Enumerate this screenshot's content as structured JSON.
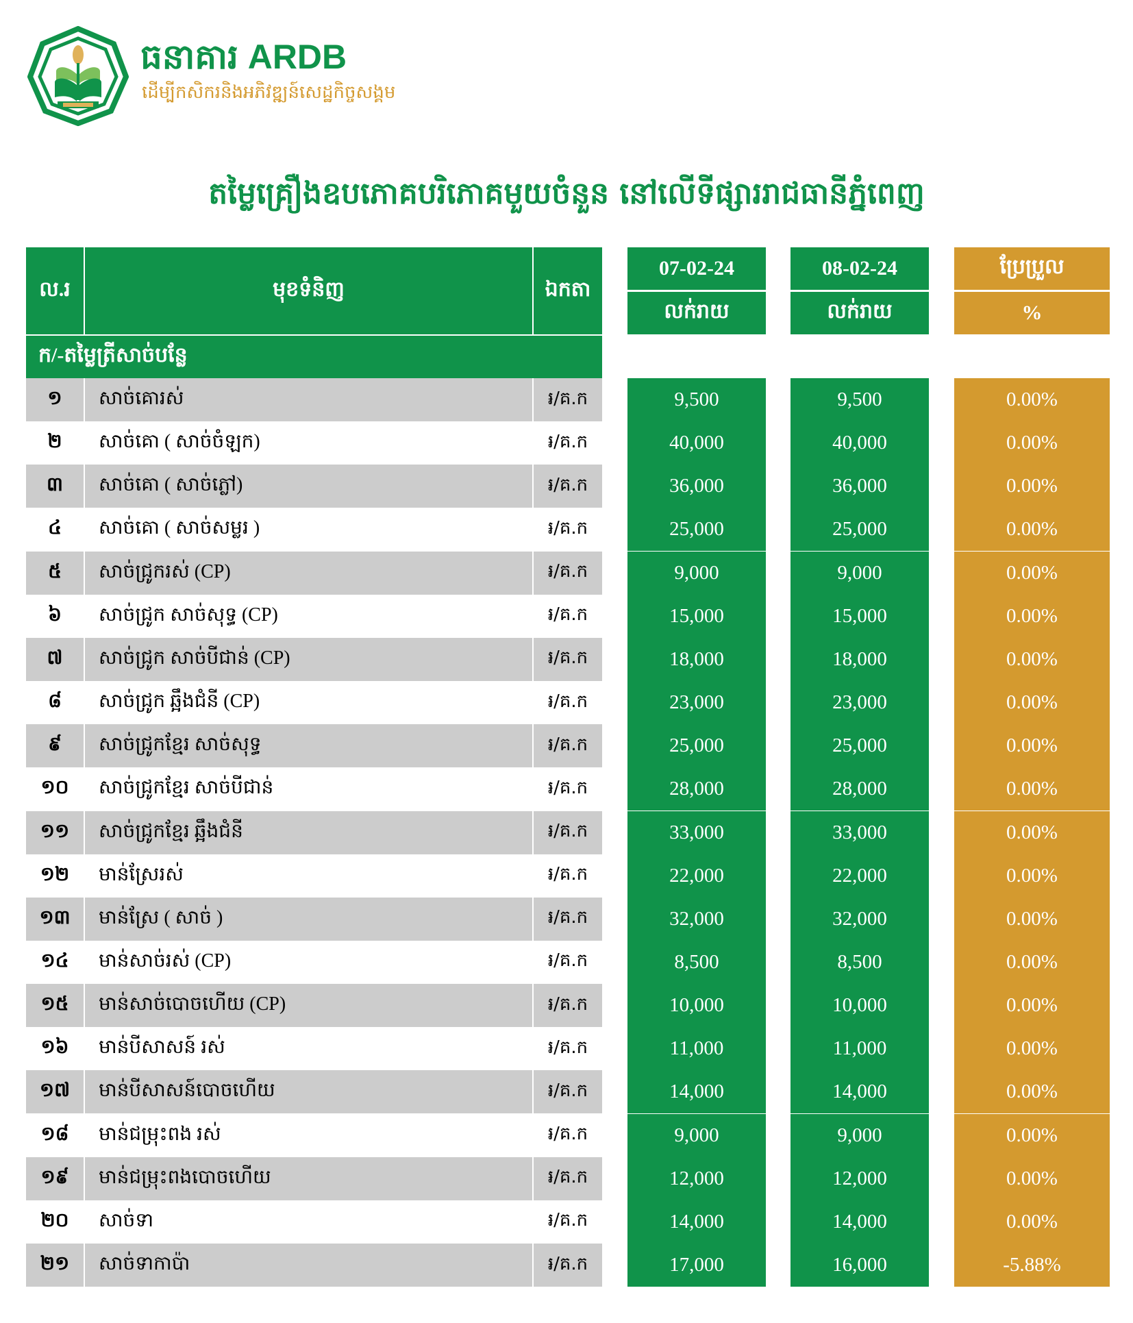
{
  "colors": {
    "brand_green": "#10934a",
    "accent_gold": "#d49a2f",
    "row_gray": "#cccccc"
  },
  "header": {
    "logo_icon": "ardb-emblem-icon",
    "logo_text": "ធនាគារ ARDB",
    "brand_name": "ធនាគារ ARDB",
    "tagline": "ដើម្បីកសិករនិងអភិវឌ្ឍន៍សេដ្ឋកិច្ចសង្គម",
    "title": "តម្លៃគ្រឿងឧបភោគបរិភោគមួយចំនួន នៅលើទីផ្សាររាជធានីភ្នំពេញ"
  },
  "table": {
    "columns": {
      "no": "ល.រ",
      "item": "មុខទំនិញ",
      "unit": "ឯកតា",
      "date1": "07-02-24",
      "date1_sub": "លក់រាយ",
      "date2": "08-02-24",
      "date2_sub": "លក់រាយ",
      "change": "ប្រែប្រួល",
      "change_sub": "%"
    },
    "section": "ក/-តម្លៃត្រីសាច់បន្លែ",
    "rows": [
      {
        "no": "១",
        "name": "សាច់គោរស់",
        "unit": "៛/គ.ក",
        "d1": "9,500",
        "d2": "9,500",
        "chg": "0.00%"
      },
      {
        "no": "២",
        "name": "សាច់គោ ( សាច់ចំឡក)",
        "unit": "៛/គ.ក",
        "d1": "40,000",
        "d2": "40,000",
        "chg": "0.00%"
      },
      {
        "no": "៣",
        "name": "សាច់គោ ( សាច់ភ្លៅ)",
        "unit": "៛/គ.ក",
        "d1": "36,000",
        "d2": "36,000",
        "chg": "0.00%"
      },
      {
        "no": "៤",
        "name": "សាច់គោ ( សាច់សម្លរ )",
        "unit": "៛/គ.ក",
        "d1": "25,000",
        "d2": "25,000",
        "chg": "0.00%"
      },
      {
        "no": "៥",
        "name": "សាច់ជ្រូករស់ (CP)",
        "unit": "៛/គ.ក",
        "d1": "9,000",
        "d2": "9,000",
        "chg": "0.00%"
      },
      {
        "no": "៦",
        "name": "សាច់ជ្រូក សាច់សុទ្ធ (CP)",
        "unit": "៛/គ.ក",
        "d1": "15,000",
        "d2": "15,000",
        "chg": "0.00%"
      },
      {
        "no": "៧",
        "name": "សាច់ជ្រូក សាច់បីជាន់ (CP)",
        "unit": "៛/គ.ក",
        "d1": "18,000",
        "d2": "18,000",
        "chg": "0.00%"
      },
      {
        "no": "៨",
        "name": "សាច់ជ្រូក ឆ្អឹងជំនី (CP)",
        "unit": "៛/គ.ក",
        "d1": "23,000",
        "d2": "23,000",
        "chg": "0.00%"
      },
      {
        "no": "៩",
        "name": "សាច់ជ្រូកខ្មែរ សាច់សុទ្ធ",
        "unit": "៛/គ.ក",
        "d1": "25,000",
        "d2": "25,000",
        "chg": "0.00%"
      },
      {
        "no": "១០",
        "name": "សាច់ជ្រូកខ្មែរ សាច់បីជាន់",
        "unit": "៛/គ.ក",
        "d1": "28,000",
        "d2": "28,000",
        "chg": "0.00%"
      },
      {
        "no": "១១",
        "name": "សាច់ជ្រូកខ្មែរ ឆ្អឹងជំនី",
        "unit": "៛/គ.ក",
        "d1": "33,000",
        "d2": "33,000",
        "chg": "0.00%"
      },
      {
        "no": "១២",
        "name": "មាន់ស្រែរស់",
        "unit": "៛/គ.ក",
        "d1": "22,000",
        "d2": "22,000",
        "chg": "0.00%"
      },
      {
        "no": "១៣",
        "name": "មាន់ស្រែ ( សាច់ )",
        "unit": "៛/គ.ក",
        "d1": "32,000",
        "d2": "32,000",
        "chg": "0.00%"
      },
      {
        "no": "១៤",
        "name": "មាន់សាច់រស់ (CP)",
        "unit": "៛/គ.ក",
        "d1": "8,500",
        "d2": "8,500",
        "chg": "0.00%"
      },
      {
        "no": "១៥",
        "name": "មាន់សាច់បោចហើយ (CP)",
        "unit": "៛/គ.ក",
        "d1": "10,000",
        "d2": "10,000",
        "chg": "0.00%"
      },
      {
        "no": "១៦",
        "name": "មាន់បីសាសន៍ រស់",
        "unit": "៛/គ.ក",
        "d1": "11,000",
        "d2": "11,000",
        "chg": "0.00%"
      },
      {
        "no": "១៧",
        "name": "មាន់បីសាសន៍បោចហើយ",
        "unit": "៛/គ.ក",
        "d1": "14,000",
        "d2": "14,000",
        "chg": "0.00%"
      },
      {
        "no": "១៨",
        "name": "មាន់ជម្រុះពង រស់",
        "unit": "៛/គ.ក",
        "d1": "9,000",
        "d2": "9,000",
        "chg": "0.00%"
      },
      {
        "no": "១៩",
        "name": "មាន់ជម្រុះពងបោចហើយ",
        "unit": "៛/គ.ក",
        "d1": "12,000",
        "d2": "12,000",
        "chg": "0.00%"
      },
      {
        "no": "២០",
        "name": "សាច់ទា",
        "unit": "៛/គ.ក",
        "d1": "14,000",
        "d2": "14,000",
        "chg": "0.00%"
      },
      {
        "no": "២១",
        "name": "សាច់ទាកាប៉ា",
        "unit": "៛/គ.ក",
        "d1": "17,000",
        "d2": "16,000",
        "chg": "-5.88%"
      }
    ]
  }
}
